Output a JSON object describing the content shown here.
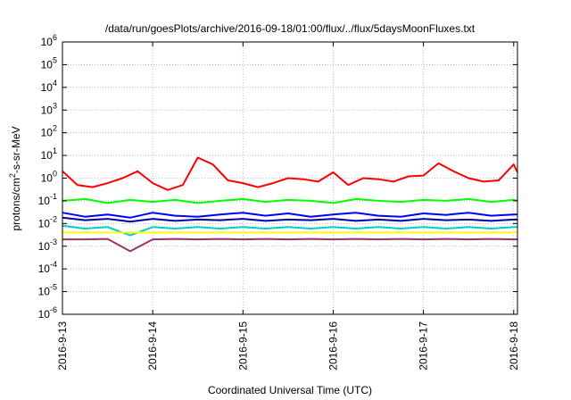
{
  "chart_data": {
    "type": "line",
    "title": "/data/run/goesPlots/archive/2016-09-18/01:00/flux/../flux/5daysMoonFluxes.txt",
    "xlabel": "Coordinated Universal Time (UTC)",
    "ylabel": "protons/cm²-s-sr-MeV",
    "ylabel_parts": {
      "pre": "protons/cm",
      "sup": "2",
      "post": "-s-sr-MeV"
    },
    "y_scale": "log",
    "ylim": [
      1e-06,
      1000000.0
    ],
    "xlim": [
      "2016-09-13 00:00",
      "2016-09-18 01:00"
    ],
    "grid": true,
    "y_ticks": [
      {
        "value": 1e-06,
        "base": "10",
        "exp": "-6"
      },
      {
        "value": 1e-05,
        "base": "10",
        "exp": "-5"
      },
      {
        "value": 0.0001,
        "base": "10",
        "exp": "-4"
      },
      {
        "value": 0.001,
        "base": "10",
        "exp": "-3"
      },
      {
        "value": 0.01,
        "base": "10",
        "exp": "-2"
      },
      {
        "value": 0.1,
        "base": "10",
        "exp": "-1"
      },
      {
        "value": 1,
        "base": "10",
        "exp": "0"
      },
      {
        "value": 10,
        "base": "10",
        "exp": "1"
      },
      {
        "value": 100,
        "base": "10",
        "exp": "2"
      },
      {
        "value": 1000.0,
        "base": "10",
        "exp": "3"
      },
      {
        "value": 10000.0,
        "base": "10",
        "exp": "4"
      },
      {
        "value": 100000.0,
        "base": "10",
        "exp": "5"
      },
      {
        "value": 1000000.0,
        "base": "10",
        "exp": "6"
      }
    ],
    "x_ticks": [
      {
        "value": "2016-09-13 00:00",
        "label": "2016-9-13"
      },
      {
        "value": "2016-09-14 00:00",
        "label": "2016-9-14"
      },
      {
        "value": "2016-09-15 00:00",
        "label": "2016-9-15"
      },
      {
        "value": "2016-09-16 00:00",
        "label": "2016-9-16"
      },
      {
        "value": "2016-09-17 00:00",
        "label": "2016-9-17"
      },
      {
        "value": "2016-09-18 00:00",
        "label": "2016-9-18"
      }
    ],
    "series": [
      {
        "color": "#ff0000",
        "x": [
          "2016-09-13 00:00",
          "2016-09-13 04:00",
          "2016-09-13 08:00",
          "2016-09-13 12:00",
          "2016-09-13 16:00",
          "2016-09-13 20:00",
          "2016-09-14 00:00",
          "2016-09-14 04:00",
          "2016-09-14 08:00",
          "2016-09-14 12:00",
          "2016-09-14 16:00",
          "2016-09-14 20:00",
          "2016-09-15 00:00",
          "2016-09-15 04:00",
          "2016-09-15 08:00",
          "2016-09-15 12:00",
          "2016-09-15 16:00",
          "2016-09-15 20:00",
          "2016-09-16 00:00",
          "2016-09-16 04:00",
          "2016-09-16 08:00",
          "2016-09-16 12:00",
          "2016-09-16 16:00",
          "2016-09-16 20:00",
          "2016-09-17 00:00",
          "2016-09-17 04:00",
          "2016-09-17 08:00",
          "2016-09-17 12:00",
          "2016-09-17 16:00",
          "2016-09-17 20:00",
          "2016-09-18 00:00",
          "2016-09-18 01:00"
        ],
        "values": [
          2.0,
          0.5,
          0.4,
          0.6,
          1.0,
          2.0,
          0.6,
          0.3,
          0.5,
          8.0,
          4.0,
          0.8,
          0.6,
          0.4,
          0.6,
          1.0,
          0.9,
          0.7,
          1.8,
          0.5,
          1.0,
          0.9,
          0.7,
          1.2,
          1.3,
          4.5,
          2.0,
          1.0,
          0.7,
          0.8,
          4.0,
          1.8
        ]
      },
      {
        "color": "#00ff00",
        "x": [
          "2016-09-13 00:00",
          "2016-09-13 06:00",
          "2016-09-13 12:00",
          "2016-09-13 18:00",
          "2016-09-14 00:00",
          "2016-09-14 06:00",
          "2016-09-14 12:00",
          "2016-09-14 18:00",
          "2016-09-15 00:00",
          "2016-09-15 06:00",
          "2016-09-15 12:00",
          "2016-09-15 18:00",
          "2016-09-16 00:00",
          "2016-09-16 06:00",
          "2016-09-16 12:00",
          "2016-09-16 18:00",
          "2016-09-17 00:00",
          "2016-09-17 06:00",
          "2016-09-17 12:00",
          "2016-09-17 18:00",
          "2016-09-18 00:00",
          "2016-09-18 01:00"
        ],
        "values": [
          0.1,
          0.12,
          0.08,
          0.11,
          0.09,
          0.11,
          0.08,
          0.1,
          0.12,
          0.09,
          0.11,
          0.1,
          0.08,
          0.12,
          0.1,
          0.09,
          0.11,
          0.1,
          0.12,
          0.09,
          0.11,
          0.1
        ]
      },
      {
        "color": "#0000ff",
        "x": [
          "2016-09-13 00:00",
          "2016-09-13 06:00",
          "2016-09-13 12:00",
          "2016-09-13 18:00",
          "2016-09-14 00:00",
          "2016-09-14 06:00",
          "2016-09-14 12:00",
          "2016-09-14 18:00",
          "2016-09-15 00:00",
          "2016-09-15 06:00",
          "2016-09-15 12:00",
          "2016-09-15 18:00",
          "2016-09-16 00:00",
          "2016-09-16 06:00",
          "2016-09-16 12:00",
          "2016-09-16 18:00",
          "2016-09-17 00:00",
          "2016-09-17 06:00",
          "2016-09-17 12:00",
          "2016-09-17 18:00",
          "2016-09-18 00:00",
          "2016-09-18 01:00"
        ],
        "values": [
          0.03,
          0.02,
          0.025,
          0.018,
          0.03,
          0.022,
          0.02,
          0.025,
          0.03,
          0.022,
          0.028,
          0.02,
          0.025,
          0.03,
          0.022,
          0.02,
          0.028,
          0.024,
          0.03,
          0.022,
          0.025,
          0.025
        ]
      },
      {
        "color": "#0000aa",
        "x": [
          "2016-09-13 00:00",
          "2016-09-13 06:00",
          "2016-09-13 12:00",
          "2016-09-13 18:00",
          "2016-09-14 00:00",
          "2016-09-14 06:00",
          "2016-09-14 12:00",
          "2016-09-14 18:00",
          "2016-09-15 00:00",
          "2016-09-15 06:00",
          "2016-09-15 12:00",
          "2016-09-15 18:00",
          "2016-09-16 00:00",
          "2016-09-16 06:00",
          "2016-09-16 12:00",
          "2016-09-16 18:00",
          "2016-09-17 00:00",
          "2016-09-17 06:00",
          "2016-09-17 12:00",
          "2016-09-17 18:00",
          "2016-09-18 00:00",
          "2016-09-18 01:00"
        ],
        "values": [
          0.018,
          0.014,
          0.016,
          0.012,
          0.016,
          0.013,
          0.015,
          0.014,
          0.016,
          0.013,
          0.015,
          0.014,
          0.016,
          0.013,
          0.015,
          0.013,
          0.016,
          0.014,
          0.015,
          0.013,
          0.015,
          0.015
        ]
      },
      {
        "color": "#00cccc",
        "x": [
          "2016-09-13 00:00",
          "2016-09-13 06:00",
          "2016-09-13 12:00",
          "2016-09-13 18:00",
          "2016-09-14 00:00",
          "2016-09-14 06:00",
          "2016-09-14 12:00",
          "2016-09-14 18:00",
          "2016-09-15 00:00",
          "2016-09-15 06:00",
          "2016-09-15 12:00",
          "2016-09-15 18:00",
          "2016-09-16 00:00",
          "2016-09-16 06:00",
          "2016-09-16 12:00",
          "2016-09-16 18:00",
          "2016-09-17 00:00",
          "2016-09-17 06:00",
          "2016-09-17 12:00",
          "2016-09-17 18:00",
          "2016-09-18 00:00",
          "2016-09-18 01:00"
        ],
        "values": [
          0.008,
          0.006,
          0.007,
          0.003,
          0.007,
          0.006,
          0.007,
          0.006,
          0.007,
          0.006,
          0.007,
          0.006,
          0.007,
          0.006,
          0.007,
          0.006,
          0.007,
          0.006,
          0.007,
          0.006,
          0.007,
          0.007
        ]
      },
      {
        "color": "#ffff00",
        "x": [
          "2016-09-13 00:00",
          "2016-09-18 01:00"
        ],
        "values": [
          0.004,
          0.004
        ]
      },
      {
        "color": "#993366",
        "x": [
          "2016-09-13 00:00",
          "2016-09-13 06:00",
          "2016-09-13 12:00",
          "2016-09-13 18:00",
          "2016-09-14 00:00",
          "2016-09-14 06:00",
          "2016-09-14 12:00",
          "2016-09-14 18:00",
          "2016-09-15 00:00",
          "2016-09-15 06:00",
          "2016-09-15 12:00",
          "2016-09-15 18:00",
          "2016-09-16 00:00",
          "2016-09-16 06:00",
          "2016-09-16 12:00",
          "2016-09-16 18:00",
          "2016-09-17 00:00",
          "2016-09-17 06:00",
          "2016-09-17 12:00",
          "2016-09-17 18:00",
          "2016-09-18 00:00",
          "2016-09-18 01:00"
        ],
        "values": [
          0.002,
          0.002,
          0.0021,
          0.0006,
          0.002,
          0.0021,
          0.002,
          0.0021,
          0.002,
          0.0021,
          0.002,
          0.0021,
          0.002,
          0.0021,
          0.002,
          0.0021,
          0.002,
          0.0021,
          0.002,
          0.0021,
          0.002,
          0.002
        ]
      }
    ]
  }
}
